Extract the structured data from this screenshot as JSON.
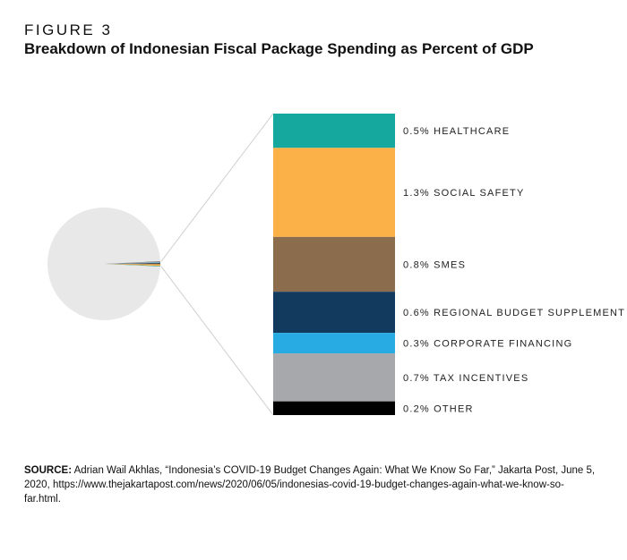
{
  "figure": {
    "label": "FIGURE 3",
    "title": "Breakdown of Indonesian Fiscal Package Spending as Percent of GDP"
  },
  "chart_data": {
    "type": "bar-of-pie",
    "unit": "% of GDP",
    "pie": {
      "remainder_color": "#e8e8e8"
    },
    "segments": [
      {
        "label": "0.5% HEALTHCARE",
        "value": 0.5,
        "color": "#15a89e"
      },
      {
        "label": "1.3% SOCIAL SAFETY",
        "value": 1.3,
        "color": "#fbb147"
      },
      {
        "label": "0.8% SMES",
        "value": 0.8,
        "color": "#8b6c4d"
      },
      {
        "label": "0.6% REGIONAL BUDGET SUPPLEMENT",
        "value": 0.6,
        "color": "#123a5f"
      },
      {
        "label": "0.3% CORPORATE FINANCING",
        "value": 0.3,
        "color": "#27abe2"
      },
      {
        "label": "0.7% TAX INCENTIVES",
        "value": 0.7,
        "color": "#a7a8ab"
      },
      {
        "label": "0.2% OTHER",
        "value": 0.2,
        "color": "#000000"
      }
    ]
  },
  "source": {
    "label": "SOURCE:",
    "text": "Adrian Wail Akhlas, “Indonesia’s COVID-19 Budget Changes Again: What We Know So Far,” Jakarta Post, June 5, 2020, https://www.thejakartapost.com/news/2020/06/05/indonesias-covid-19-budget-changes-again-what-we-know-so-far.html."
  }
}
